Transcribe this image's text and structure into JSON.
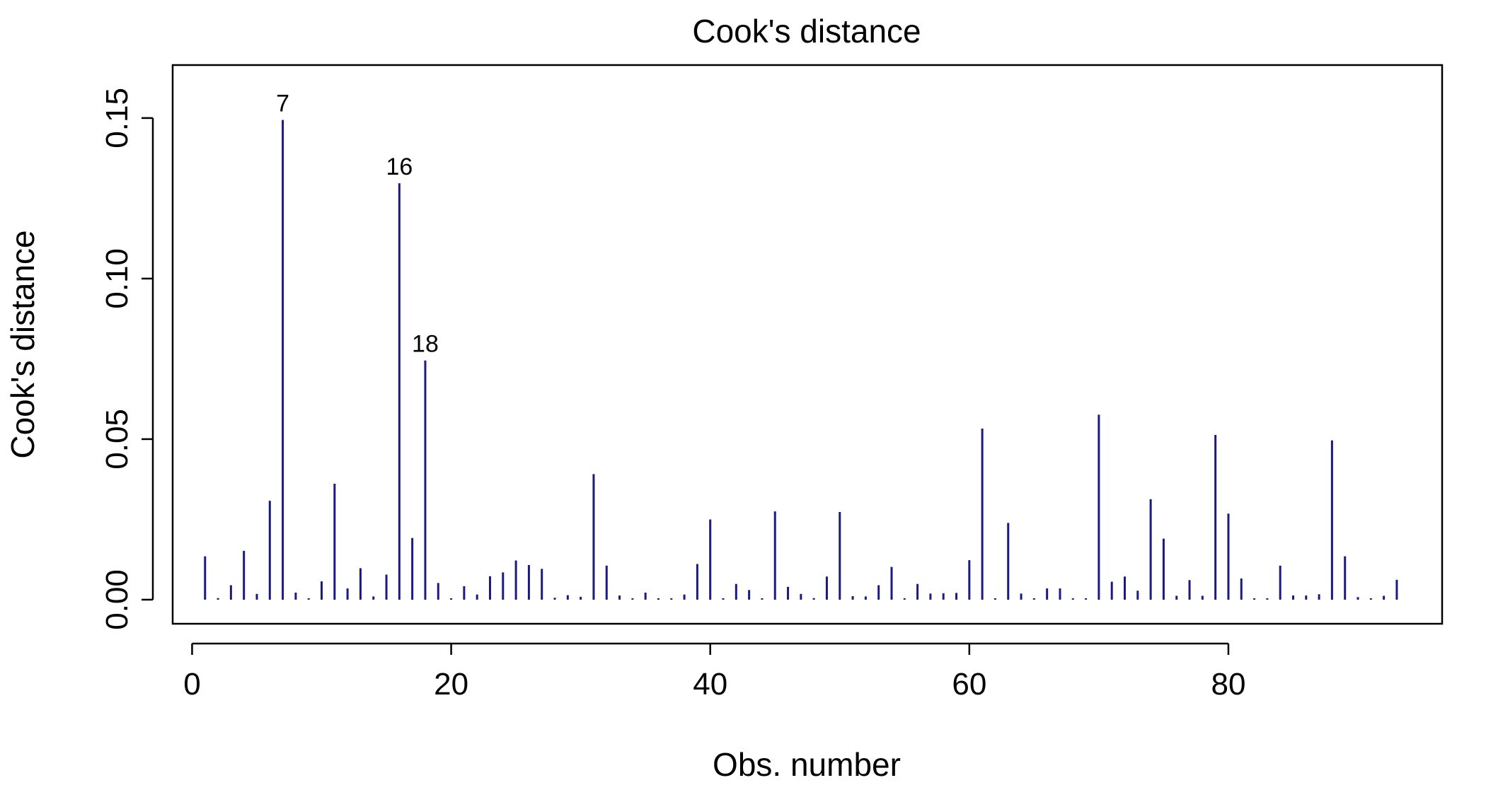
{
  "chart_data": {
    "type": "bar",
    "title": "Cook's distance",
    "xlabel": "Obs. number",
    "ylabel": "Cook's distance",
    "xlim": [
      -1.5,
      96.5
    ],
    "ylim": [
      -0.0075,
      0.1665
    ],
    "x_ticks": [
      0,
      20,
      40,
      60,
      80
    ],
    "y_ticks": [
      0.0,
      0.05,
      0.1,
      0.15
    ],
    "y_tick_labels": [
      "0.00",
      "0.05",
      "0.10",
      "0.15"
    ],
    "grid": false,
    "bar_color": "#1a1a80",
    "x": [
      1,
      2,
      3,
      4,
      5,
      6,
      7,
      8,
      9,
      10,
      11,
      12,
      13,
      14,
      15,
      16,
      17,
      18,
      19,
      20,
      21,
      22,
      23,
      24,
      25,
      26,
      27,
      28,
      29,
      30,
      31,
      32,
      33,
      34,
      35,
      36,
      37,
      38,
      39,
      40,
      41,
      42,
      43,
      44,
      45,
      46,
      47,
      48,
      49,
      50,
      51,
      52,
      53,
      54,
      55,
      56,
      57,
      58,
      59,
      60,
      61,
      62,
      63,
      64,
      65,
      66,
      67,
      68,
      69,
      70,
      71,
      72,
      73,
      74,
      75,
      76,
      77,
      78,
      79,
      80,
      81,
      82,
      83,
      84,
      85,
      86,
      87,
      88,
      89,
      90,
      91,
      92,
      93
    ],
    "values": [
      0.0135,
      0.0005,
      0.0045,
      0.0152,
      0.0018,
      0.0308,
      0.1494,
      0.0022,
      0.0003,
      0.0057,
      0.0361,
      0.0035,
      0.0098,
      0.001,
      0.0078,
      0.1297,
      0.0192,
      0.0745,
      0.0052,
      0.0003,
      0.0042,
      0.0016,
      0.0073,
      0.0085,
      0.0122,
      0.0108,
      0.0096,
      0.0006,
      0.0014,
      0.0009,
      0.0391,
      0.0106,
      0.0013,
      0.0004,
      0.0022,
      0.0004,
      0.0003,
      0.0016,
      0.0111,
      0.025,
      0.0004,
      0.0049,
      0.003,
      0.0004,
      0.0275,
      0.004,
      0.0018,
      0.0005,
      0.0072,
      0.0273,
      0.0011,
      0.001,
      0.0045,
      0.0102,
      0.0004,
      0.0049,
      0.0019,
      0.002,
      0.0021,
      0.0123,
      0.0533,
      0.0004,
      0.0239,
      0.0019,
      0.0004,
      0.0035,
      0.0035,
      0.0004,
      0.0003,
      0.0576,
      0.0056,
      0.0072,
      0.0028,
      0.0313,
      0.019,
      0.0012,
      0.0061,
      0.0012,
      0.0513,
      0.0268,
      0.0066,
      0.0004,
      0.0003,
      0.0106,
      0.0013,
      0.0013,
      0.0017,
      0.0496,
      0.0135,
      0.0008,
      0.0004,
      0.0012,
      0.0062
    ],
    "labeled_points": [
      {
        "x": 7,
        "label": "7"
      },
      {
        "x": 16,
        "label": "16"
      },
      {
        "x": 18,
        "label": "18"
      }
    ]
  }
}
